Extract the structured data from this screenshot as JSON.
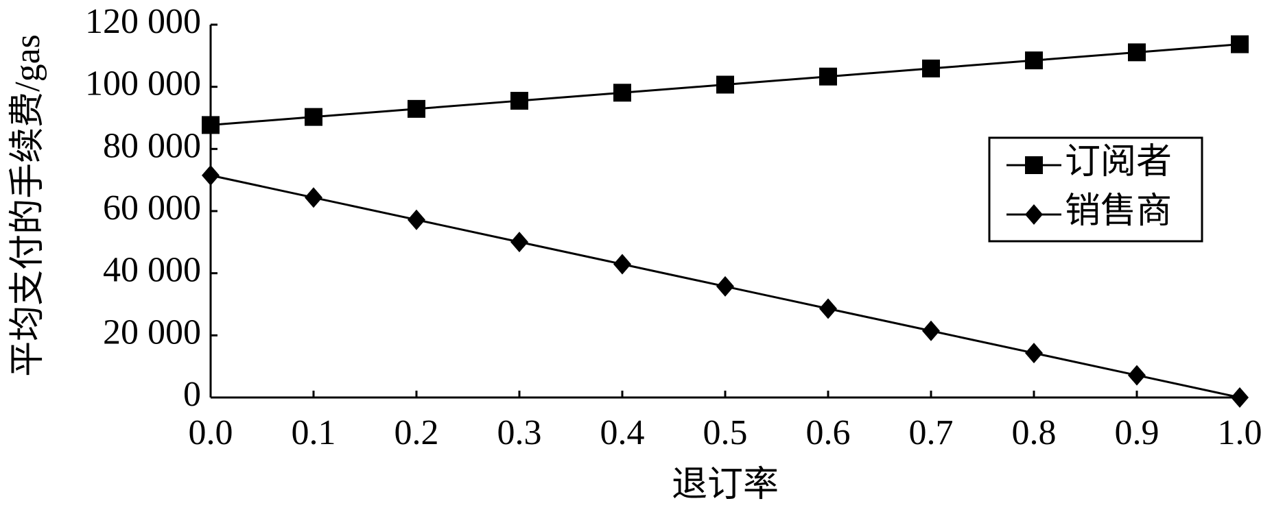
{
  "chart_data": {
    "type": "line",
    "ylabel": "平均支付的手续费/gas",
    "xlabel": "退订率",
    "x": [
      0,
      0.1,
      0.2,
      0.3,
      0.4,
      0.5,
      0.6,
      0.7,
      0.8,
      0.9,
      1
    ],
    "series": [
      {
        "name": "订阅者",
        "color": "#000000",
        "marker": "square",
        "values": [
          87700,
          90300,
          92900,
          95500,
          98100,
          100700,
          103300,
          105900,
          108500,
          111100,
          113700
        ]
      },
      {
        "name": "销售商",
        "color": "#000000",
        "marker": "diamond",
        "values": [
          71500,
          64350,
          57200,
          50050,
          42900,
          35750,
          28600,
          21450,
          14300,
          7150,
          0
        ]
      }
    ],
    "xlim": [
      0,
      1
    ],
    "xticks": [
      {
        "value": 0,
        "label": "0.0"
      },
      0.1,
      0.2,
      0.3,
      0.4,
      0.5,
      0.6,
      0.7,
      0.8,
      0.9,
      {
        "value": 1,
        "label": "1.0"
      }
    ],
    "ylim": [
      0,
      120000
    ],
    "yticks": [
      0,
      {
        "value": 20000,
        "label": "20 000"
      },
      {
        "value": 40000,
        "label": "40 000"
      },
      {
        "value": 60000,
        "label": "60 000"
      },
      {
        "value": 80000,
        "label": "80 000"
      },
      {
        "value": 100000,
        "label": "100 000"
      },
      {
        "value": 120000,
        "label": "120 000"
      }
    ],
    "legend": "right"
  }
}
